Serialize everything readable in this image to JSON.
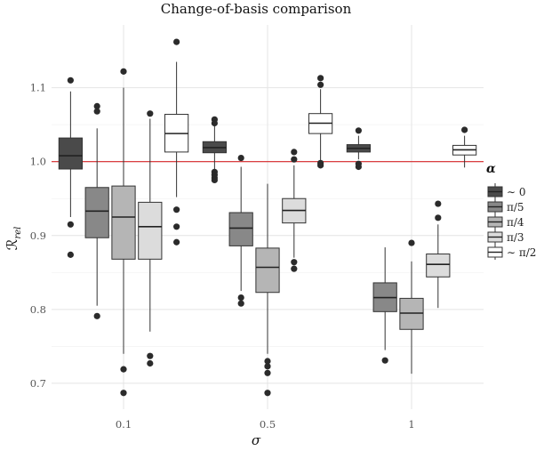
{
  "chart_data": {
    "type": "boxplot",
    "title": "Change-of-basis comparison",
    "xlabel": "σ",
    "ylabel": "ℛ",
    "ylabel_sub": "rel",
    "categories": [
      "0.1",
      "0.5",
      "1"
    ],
    "ylim": [
      0.665,
      1.185
    ],
    "yticks": [
      0.7,
      0.8,
      0.9,
      1.0,
      1.1
    ],
    "ytick_labels": [
      "0.7",
      "0.8",
      "0.9",
      "1.0",
      "1.1"
    ],
    "reference_line": {
      "y": 1.0,
      "color": "#d62728"
    },
    "grid": true,
    "legend": {
      "title": "α",
      "placement": "right",
      "entries": [
        {
          "label": "∼ 0",
          "color": "#4a4a4a"
        },
        {
          "label": "π/5",
          "color": "#888888"
        },
        {
          "label": "π/4",
          "color": "#b5b5b5"
        },
        {
          "label": "π/3",
          "color": "#dcdcdc"
        },
        {
          "label": "∼ π/2",
          "color": "#ffffff"
        }
      ]
    },
    "series": [
      {
        "name": "∼ 0",
        "boxes": [
          {
            "category": "0.1",
            "min": 0.925,
            "q1": 0.99,
            "median": 1.008,
            "q3": 1.032,
            "max": 1.095,
            "outliers": [
              1.11,
              0.915,
              0.874
            ]
          },
          {
            "category": "0.5",
            "min": 0.99,
            "q1": 1.012,
            "median": 1.019,
            "q3": 1.027,
            "max": 1.048,
            "outliers": [
              1.057,
              1.052,
              0.986,
              0.982,
              0.978,
              0.975
            ]
          },
          {
            "category": "1",
            "min": 1.003,
            "q1": 1.013,
            "median": 1.018,
            "q3": 1.023,
            "max": 1.035,
            "outliers": [
              1.042,
              0.997,
              0.993
            ]
          }
        ]
      },
      {
        "name": "π/5",
        "boxes": [
          {
            "category": "0.1",
            "min": 0.805,
            "q1": 0.897,
            "median": 0.933,
            "q3": 0.965,
            "max": 1.045,
            "outliers": [
              1.075,
              1.068,
              0.791
            ]
          },
          {
            "category": "0.5",
            "min": 0.825,
            "q1": 0.886,
            "median": 0.91,
            "q3": 0.931,
            "max": 0.993,
            "outliers": [
              1.005,
              0.816,
              0.808
            ]
          },
          {
            "category": "1",
            "min": 0.745,
            "q1": 0.797,
            "median": 0.816,
            "q3": 0.836,
            "max": 0.884,
            "outliers": [
              0.731
            ]
          }
        ]
      },
      {
        "name": "π/4",
        "boxes": [
          {
            "category": "0.1",
            "min": 0.74,
            "q1": 0.868,
            "median": 0.925,
            "q3": 0.967,
            "max": 1.1,
            "outliers": [
              1.122,
              0.719,
              0.687
            ]
          },
          {
            "category": "0.5",
            "min": 0.74,
            "q1": 0.823,
            "median": 0.857,
            "q3": 0.883,
            "max": 0.97,
            "outliers": [
              0.73,
              0.723,
              0.714,
              0.687
            ]
          },
          {
            "category": "1",
            "min": 0.713,
            "q1": 0.773,
            "median": 0.795,
            "q3": 0.815,
            "max": 0.865,
            "outliers": [
              0.89
            ]
          }
        ]
      },
      {
        "name": "π/3",
        "boxes": [
          {
            "category": "0.1",
            "min": 0.77,
            "q1": 0.868,
            "median": 0.912,
            "q3": 0.945,
            "max": 1.058,
            "outliers": [
              1.065,
              0.737,
              0.727
            ]
          },
          {
            "category": "0.5",
            "min": 0.87,
            "q1": 0.917,
            "median": 0.934,
            "q3": 0.95,
            "max": 0.995,
            "outliers": [
              1.013,
              1.003,
              0.864,
              0.855
            ]
          },
          {
            "category": "1",
            "min": 0.802,
            "q1": 0.844,
            "median": 0.861,
            "q3": 0.875,
            "max": 0.915,
            "outliers": [
              0.943,
              0.924
            ]
          }
        ]
      },
      {
        "name": "∼ π/2",
        "boxes": [
          {
            "category": "0.1",
            "min": 0.952,
            "q1": 1.013,
            "median": 1.038,
            "q3": 1.064,
            "max": 1.135,
            "outliers": [
              1.162,
              0.935,
              0.912,
              0.891
            ]
          },
          {
            "category": "0.5",
            "min": 1.0,
            "q1": 1.038,
            "median": 1.052,
            "q3": 1.065,
            "max": 1.098,
            "outliers": [
              1.113,
              1.104,
              0.998,
              0.995
            ]
          },
          {
            "category": "1",
            "min": 0.992,
            "q1": 1.009,
            "median": 1.016,
            "q3": 1.022,
            "max": 1.035,
            "outliers": [
              1.043
            ]
          }
        ]
      }
    ]
  }
}
